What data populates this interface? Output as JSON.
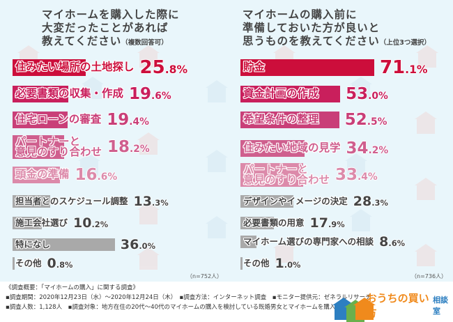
{
  "chart_data": [
    {
      "type": "bar",
      "orientation": "horizontal",
      "title": "マイホームを購入した際に\n大変だったことがあれば\n教えてください",
      "title_note": "（複数回答可）",
      "categories": [
        "住みたい場所の土地探し",
        "必要書類の収集・作成",
        "住宅ローンの審査",
        "パートナーと\n意見のすり合わせ",
        "頭金の準備",
        "担当者とのスケジュール調整",
        "施工会社選び",
        "特になし",
        "その他"
      ],
      "values": [
        25.8,
        19.6,
        19.4,
        18.2,
        16.6,
        13.3,
        10.2,
        36.0,
        0.8
      ],
      "unit": "%",
      "sample": "（n=752人）"
    },
    {
      "type": "bar",
      "orientation": "horizontal",
      "title": "マイホームの購入前に\n準備しておいた方が良いと\n思うものを教えてください",
      "title_note": "（上位3つ選択）",
      "categories": [
        "貯金",
        "資金計画の作成",
        "希望条件の整理",
        "住みたい地域の見学",
        "パートナーと\n意見のすり合わせ",
        "デザインやイメージの決定",
        "必要書類の用意",
        "マイホーム選びの専門家への相談",
        "その他"
      ],
      "values": [
        71.1,
        53.0,
        52.5,
        34.2,
        33.4,
        28.3,
        17.9,
        8.6,
        1.0
      ],
      "unit": "%",
      "sample": "（n=736人）"
    }
  ],
  "colors": {
    "rank": [
      "#cc0e3b",
      "#c91f5c",
      "#c93f78",
      "#cf5f8e",
      "#dc8aaa"
    ],
    "other": "#a9a9a9",
    "other_text": "#444444",
    "background": "#e9f6fb"
  },
  "footer": {
    "line1": "《調査概要：「マイホームの購入」に関する調査》",
    "line2": "▪調査期間：2020年12月23日（水）～2020年12月24日（木）　▪調査方法：インターネット調査　▪モニター提供元：ゼネラルリサーチ",
    "line3": "▪調査人数：1,128人　▪調査対象：地方在住の20代～40代のマイホームの購入を検討している既婚男女とマイホームを購入した既婚男女"
  },
  "logo": {
    "text": "おうちの買い方",
    "sub": "相談室"
  }
}
